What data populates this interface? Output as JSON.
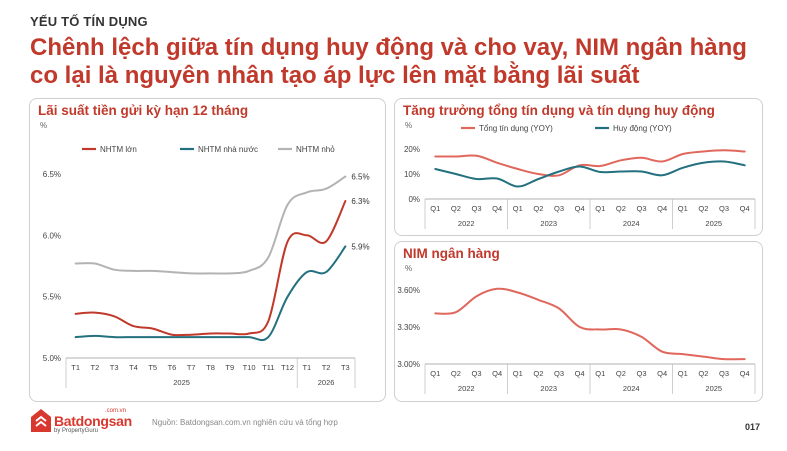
{
  "kicker": "YẾU TỐ TÍN DỤNG",
  "headline": "Chênh lệch giữa tín dụng huy động và cho vay, NIM ngân hàng co lại là nguyên nhân tạo áp lực lên mặt bằng lãi suất",
  "footer": {
    "source": "Nguồn: Batdongsan.com.vn nghiên cứu và tổng hợp",
    "page_number": "017",
    "logo_name": "Batdongsan",
    "logo_domain": ".com.vn",
    "logo_sub": "by PropertyGuru"
  },
  "colors": {
    "red": "#c0392b",
    "teal": "#23707e",
    "gray": "#b3b3b3"
  },
  "chart_data": [
    {
      "id": "deposit",
      "type": "line",
      "title": "Lãi suất tiền gửi kỳ hạn 12 tháng",
      "unit": "%",
      "categories": [
        "T1",
        "T2",
        "T3",
        "T4",
        "T5",
        "T6",
        "T7",
        "T8",
        "T9",
        "T10",
        "T11",
        "T12",
        "T1",
        "T2",
        "T3"
      ],
      "groups": [
        {
          "label": "2025",
          "from": 0,
          "to": 11
        },
        {
          "label": "2026",
          "from": 12,
          "to": 14
        }
      ],
      "yticks": [
        "5.0%",
        "5.5%",
        "6.0%",
        "6.5%"
      ],
      "ylim": [
        5.0,
        6.5
      ],
      "series": [
        {
          "name": "NHTM lớn",
          "color": "#c0392b",
          "values": [
            5.36,
            5.37,
            5.34,
            5.26,
            5.24,
            5.19,
            5.19,
            5.2,
            5.2,
            5.2,
            5.3,
            5.95,
            6.0,
            5.95,
            6.28
          ],
          "end_label": "6.3%"
        },
        {
          "name": "NHTM nhà nước",
          "color": "#23707e",
          "values": [
            5.17,
            5.18,
            5.17,
            5.17,
            5.17,
            5.17,
            5.17,
            5.17,
            5.17,
            5.17,
            5.17,
            5.5,
            5.7,
            5.7,
            5.91
          ],
          "end_label": "5.9%"
        },
        {
          "name": "NHTM nhỏ",
          "color": "#b3b3b3",
          "values": [
            5.77,
            5.77,
            5.72,
            5.71,
            5.71,
            5.7,
            5.69,
            5.69,
            5.69,
            5.71,
            5.82,
            6.25,
            6.35,
            6.38,
            6.48
          ],
          "end_label": "6.5%"
        }
      ]
    },
    {
      "id": "credit",
      "type": "line",
      "title": "Tăng trưởng tổng tín dụng và tín dụng huy động",
      "unit": "%",
      "categories": [
        "Q1",
        "Q2",
        "Q3",
        "Q4",
        "Q1",
        "Q2",
        "Q3",
        "Q4",
        "Q1",
        "Q2",
        "Q3",
        "Q4",
        "Q1",
        "Q2",
        "Q3",
        "Q4"
      ],
      "groups": [
        {
          "label": "2022",
          "from": 0,
          "to": 3
        },
        {
          "label": "2023",
          "from": 4,
          "to": 7
        },
        {
          "label": "2024",
          "from": 8,
          "to": 11
        },
        {
          "label": "2025",
          "from": 12,
          "to": 15
        }
      ],
      "yticks": [
        "0%",
        "10%",
        "20%"
      ],
      "ylim": [
        0,
        20
      ],
      "series": [
        {
          "name": "Tổng tín dụng (YOY)",
          "color": "#e0675c",
          "values": [
            17,
            17,
            17.3,
            14.5,
            12,
            10,
            9.5,
            13.5,
            13.2,
            15.5,
            16.5,
            15,
            18,
            19,
            19.5,
            19
          ]
        },
        {
          "name": "Huy động (YOY)",
          "color": "#23707e",
          "values": [
            12,
            10,
            8,
            8.2,
            5,
            8,
            11,
            13,
            10.8,
            11,
            11,
            9.5,
            12.5,
            14.5,
            15,
            13.5
          ]
        }
      ]
    },
    {
      "id": "nim",
      "type": "line",
      "title": "NIM ngân hàng",
      "unit": "%",
      "categories": [
        "Q1",
        "Q2",
        "Q3",
        "Q4",
        "Q1",
        "Q2",
        "Q3",
        "Q4",
        "Q1",
        "Q2",
        "Q3",
        "Q4",
        "Q1",
        "Q2",
        "Q3",
        "Q4"
      ],
      "groups": [
        {
          "label": "2022",
          "from": 0,
          "to": 3
        },
        {
          "label": "2023",
          "from": 4,
          "to": 7
        },
        {
          "label": "2024",
          "from": 8,
          "to": 11
        },
        {
          "label": "2025",
          "from": 12,
          "to": 15
        }
      ],
      "yticks": [
        "3.00%",
        "3.30%",
        "3.60%"
      ],
      "ylim": [
        3.0,
        3.6
      ],
      "series": [
        {
          "name": "NIM",
          "color": "#e0675c",
          "values": [
            3.41,
            3.42,
            3.55,
            3.61,
            3.58,
            3.52,
            3.45,
            3.3,
            3.28,
            3.28,
            3.22,
            3.1,
            3.08,
            3.06,
            3.04,
            3.04
          ]
        }
      ]
    }
  ]
}
